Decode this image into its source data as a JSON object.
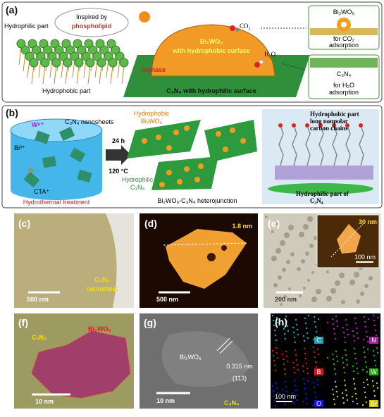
{
  "panel_a": {
    "label": "(a)",
    "bubble": [
      "Inspired by",
      "phospholipid"
    ],
    "hydrophilic_part": "Hydrophilic part",
    "hydrophobic_part": "Hydrophobic part",
    "co2": "CO₂",
    "h2o": "H₂O",
    "dome": [
      "Bi₂WO₆",
      "with hydrophobic surface"
    ],
    "diphase": "Diphase",
    "slab": "C₃N₄ with hydrophilic surface",
    "box_1": {
      "title": "Bi₂WO₆",
      "caption": [
        "for CO₂",
        "adsorption"
      ]
    },
    "box_2": {
      "title": "C₃N₄",
      "caption": [
        "for H₂O",
        "adsorption"
      ]
    }
  },
  "panel_b": {
    "label": "(b)",
    "w_ion": "W⁶⁺",
    "nanosheets": "C₃N₄ nanosheets",
    "bi_ion": "Bi³⁺",
    "br_ion": "Br⁻",
    "cta": "CTA⁺",
    "treatment": "Hydrothermal treatment",
    "time": "24 h",
    "temperature": "120 °C",
    "hydrophobic": [
      "Hydrophobic",
      "Bi₂WO₆"
    ],
    "hydrophilic": [
      "Hydrophilic",
      "C₃N₄"
    ],
    "heterojunction": "Bi₂WO₆-C₃N₄ heterojunction",
    "chain_note": [
      "Hydrophobic part",
      "long nonpolar",
      "carbon chains"
    ],
    "hydrophilic_note": [
      "Hydrophilic part of",
      "C₃N₄"
    ]
  },
  "panel_c": {
    "label": "(c)",
    "scale": "500 nm",
    "caption": [
      "C₃N₄",
      "nanosheet"
    ]
  },
  "panel_d": {
    "label": "(d)",
    "height": "1.8 nm",
    "scale": "500 nm"
  },
  "panel_e": {
    "label": "(e)",
    "inset_height": "30 nm",
    "inset_scale": "100 nm",
    "scale": "200 nm"
  },
  "panel_f": {
    "label": "(f)",
    "c3n4": "C₃N₄",
    "bi2wo6": "Bi₂WO₆",
    "scale": "10 nm"
  },
  "panel_g": {
    "label": "(g)",
    "bi2wo6": "Bi₂WO₆",
    "spacing": "0.315 nm",
    "plane": "(113)",
    "scale": "10 nm",
    "c3n4": "C₃N₄"
  },
  "panel_h": {
    "label": "(h)",
    "elements": [
      "C",
      "N",
      "B",
      "W",
      "O",
      "Br"
    ],
    "scale": "100 nm"
  }
}
